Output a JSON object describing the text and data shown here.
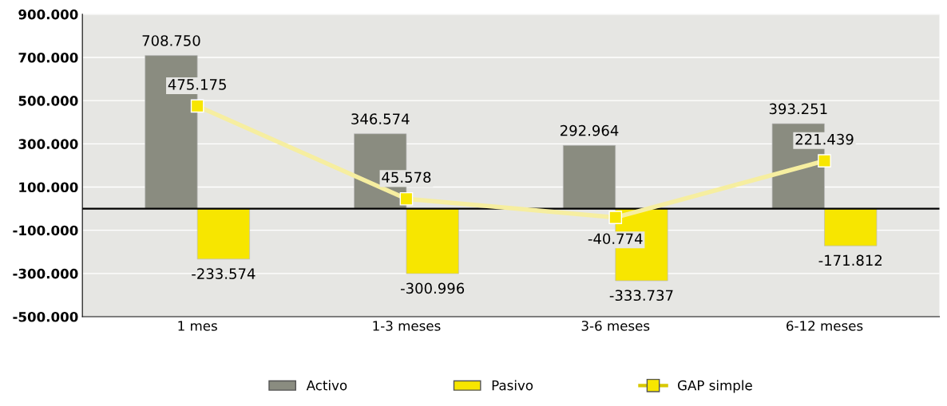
{
  "chart_data": {
    "type": "bar",
    "categories": [
      "1 mes",
      "1-3 meses",
      "3-6 meses",
      "6-12 meses"
    ],
    "series": [
      {
        "name": "Activo",
        "color": "#8a8c80",
        "values": [
          708750,
          346574,
          292964,
          393251
        ],
        "value_labels": [
          "708.750",
          "346.574",
          "292.964",
          "393.251"
        ]
      },
      {
        "name": "Pasivo",
        "color": "#f7e600",
        "values": [
          -233574,
          -300996,
          -333737,
          -171812
        ],
        "value_labels": [
          "-233.574",
          "-300.996",
          "-333.737",
          "-171.812"
        ]
      },
      {
        "name": "GAP simple",
        "type": "line",
        "color": "#f6eea0",
        "values": [
          475175,
          45578,
          -40774,
          221439
        ],
        "value_labels": [
          "475.175",
          "45.578",
          "-40.774",
          "221.439"
        ]
      }
    ],
    "ylim": [
      -500000,
      900000
    ],
    "yticks": [
      {
        "value": -500000,
        "label": "-500.000"
      },
      {
        "value": -300000,
        "label": "-300.000"
      },
      {
        "value": -100000,
        "label": "-100.000"
      },
      {
        "value": 100000,
        "label": "100.000"
      },
      {
        "value": 300000,
        "label": "300.000"
      },
      {
        "value": 500000,
        "label": "500.000"
      },
      {
        "value": 700000,
        "label": "700.000"
      },
      {
        "value": 900000,
        "label": "900.000"
      }
    ],
    "ref_lines": [
      {
        "axis": "y",
        "value": 0,
        "label": null,
        "color": "#000000"
      }
    ],
    "grid": "y",
    "legend": "bottom",
    "marker": "square",
    "line_style": "solid"
  }
}
